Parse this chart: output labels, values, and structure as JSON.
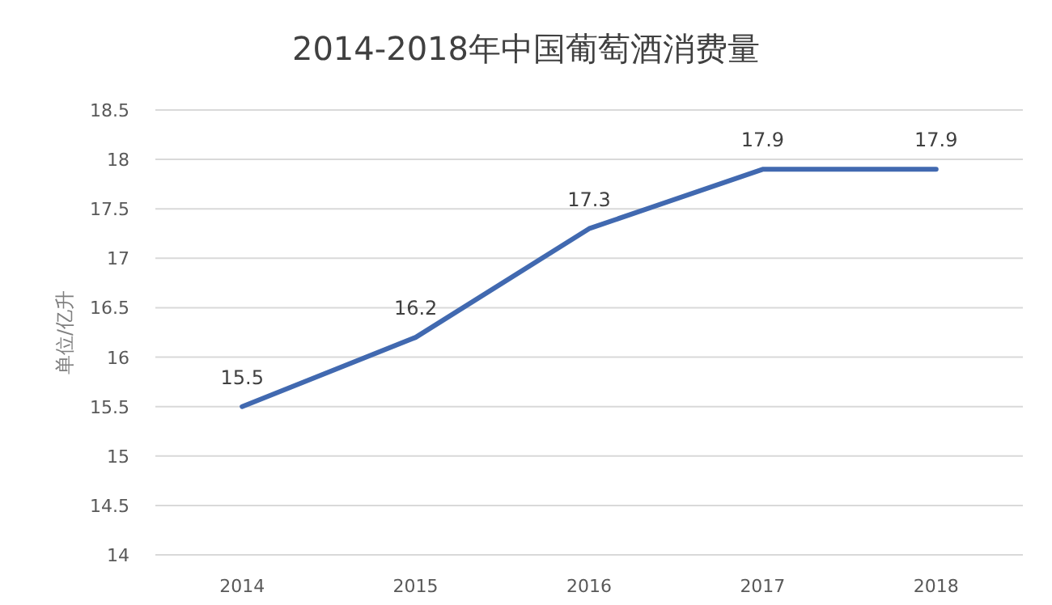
{
  "chart_data": {
    "type": "line",
    "title": "2014-2018年中国葡萄酒消费量",
    "ylabel": "单位/亿升",
    "categories": [
      "2014",
      "2015",
      "2016",
      "2017",
      "2018"
    ],
    "series": [
      {
        "color": "#4169b0",
        "values": [
          15.5,
          16.2,
          17.3,
          17.9,
          17.9
        ]
      }
    ],
    "ylim": [
      14,
      18.5
    ],
    "yticks": [
      14,
      14.5,
      15,
      15.5,
      16,
      16.5,
      17,
      17.5,
      18,
      18.5
    ],
    "grid": "y",
    "data_labels": true
  }
}
